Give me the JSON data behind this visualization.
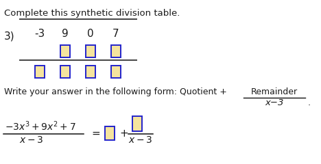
{
  "title": "Complete this synthetic division table.",
  "background_color": "#ffffff",
  "text_color": "#1a1a1a",
  "box_face": "#f5e49e",
  "box_edge": "#2222cc",
  "line_color": "#111111",
  "divisor": "3)",
  "row1": [
    "-3",
    "9",
    "0",
    "7"
  ],
  "write_line": "Write your answer in the following form: Quotient +",
  "remainder_label": "Remainder",
  "denom1": "x−3",
  "period": ".",
  "bottom_num": "$-3x^3+9x^2+7$",
  "bottom_den": "$x-3$",
  "equals": "=",
  "plus": "+"
}
